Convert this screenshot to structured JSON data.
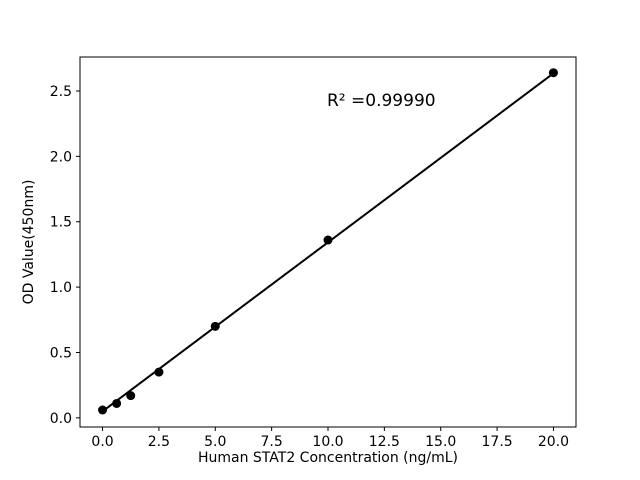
{
  "chart_data": {
    "type": "scatter",
    "title": "",
    "xlabel": "Human STAT2 Concentration (ng/mL)",
    "ylabel": "OD Value(450nm)",
    "annotation": "R² =0.99990",
    "x": [
      0,
      0.625,
      1.25,
      2.5,
      5,
      10,
      20
    ],
    "y": [
      0.06,
      0.11,
      0.17,
      0.35,
      0.7,
      1.36,
      2.64
    ],
    "fit_line": {
      "x": [
        0,
        20
      ],
      "y": [
        0.05,
        2.635
      ]
    },
    "xlim": [
      -1,
      21
    ],
    "ylim": [
      -0.07,
      2.76
    ],
    "xticks": {
      "values": [
        0,
        2.5,
        5,
        7.5,
        10,
        12.5,
        15,
        17.5,
        20
      ],
      "labels": [
        "0.0",
        "2.5",
        "5.0",
        "7.5",
        "10.0",
        "12.5",
        "15.0",
        "17.5",
        "20.0"
      ]
    },
    "yticks": {
      "values": [
        0,
        0.5,
        1.0,
        1.5,
        2.0,
        2.5
      ],
      "labels": [
        "0.0",
        "0.5",
        "1.0",
        "1.5",
        "2.0",
        "2.5"
      ]
    },
    "grid": false,
    "legend": null,
    "line_color": "#000000",
    "marker_color": "#000000",
    "axis_color": "#000000",
    "background_color": "#ffffff"
  }
}
